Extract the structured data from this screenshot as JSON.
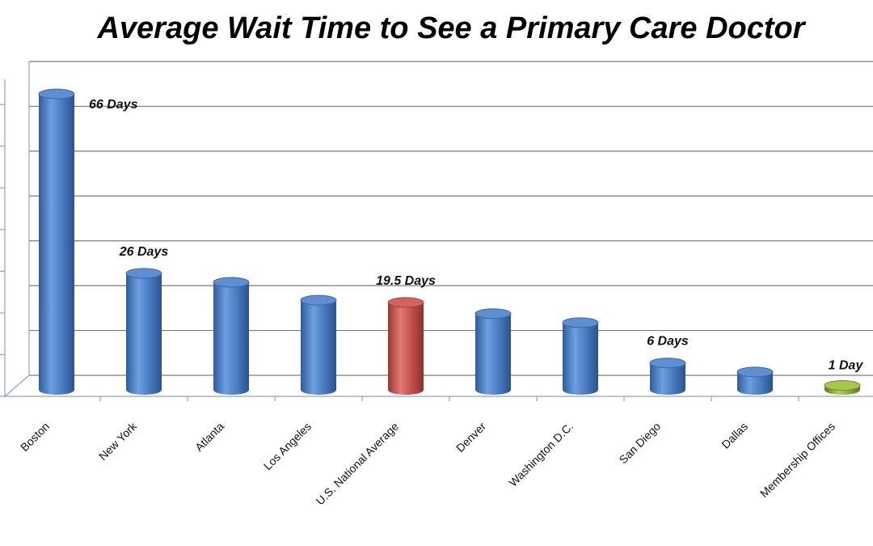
{
  "chart_data": {
    "type": "bar",
    "title": "Average Wait Time to See a Primary Care Doctor",
    "xlabel": "",
    "ylabel": "",
    "ylim": [
      0,
      70
    ],
    "grid": true,
    "categories": [
      "Boston",
      "New York",
      "Atlanta",
      "Los Angeles",
      "U.S. National Average",
      "Denver",
      "Washington D.C.",
      "San Diego",
      "Dallas",
      "Membership Offices"
    ],
    "values": [
      66,
      26,
      24,
      20,
      19.5,
      17,
      15,
      6,
      4,
      1
    ],
    "data_labels": [
      "66 Days",
      "26 Days",
      "",
      "",
      "19.5 Days",
      "",
      "",
      "6 Days",
      "",
      "1 Day"
    ],
    "colors": {
      "default": "#4a7cc0",
      "U.S. National Average": "#c0504d",
      "Membership Offices": "#8db33a"
    }
  }
}
